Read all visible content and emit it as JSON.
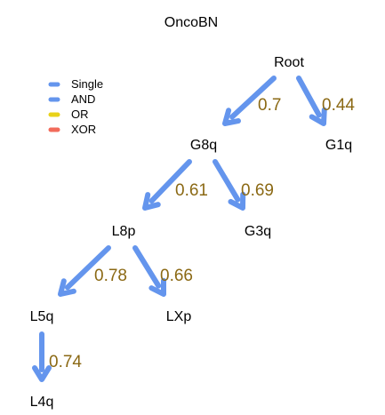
{
  "title": "OncoBN",
  "colors": {
    "single": "#6495ED",
    "and": "#6495ED",
    "or": "#E8D21A",
    "xor": "#F26B5B",
    "edge_label": "#8B6914"
  },
  "legend": [
    {
      "label": "Single",
      "color": "#6495ED"
    },
    {
      "label": "AND",
      "color": "#6495ED"
    },
    {
      "label": "OR",
      "color": "#E8D21A"
    },
    {
      "label": "XOR",
      "color": "#F26B5B"
    }
  ],
  "nodes": [
    {
      "id": "root",
      "label": "Root"
    },
    {
      "id": "g8q",
      "label": "G8q"
    },
    {
      "id": "g1q",
      "label": "G1q"
    },
    {
      "id": "l8p",
      "label": "L8p"
    },
    {
      "id": "g3q",
      "label": "G3q"
    },
    {
      "id": "l5q",
      "label": "L5q"
    },
    {
      "id": "lxp",
      "label": "LXp"
    },
    {
      "id": "l4q",
      "label": "L4q"
    }
  ],
  "edges": [
    {
      "from": "root",
      "to": "g8q",
      "label": "0.7",
      "type": "single"
    },
    {
      "from": "root",
      "to": "g1q",
      "label": "0.44",
      "type": "single"
    },
    {
      "from": "g8q",
      "to": "l8p",
      "label": "0.61",
      "type": "single"
    },
    {
      "from": "g8q",
      "to": "g3q",
      "label": "0.69",
      "type": "single"
    },
    {
      "from": "l8p",
      "to": "l5q",
      "label": "0.78",
      "type": "single"
    },
    {
      "from": "l8p",
      "to": "lxp",
      "label": "0.66",
      "type": "single"
    },
    {
      "from": "l5q",
      "to": "l4q",
      "label": "0.74",
      "type": "single"
    }
  ]
}
